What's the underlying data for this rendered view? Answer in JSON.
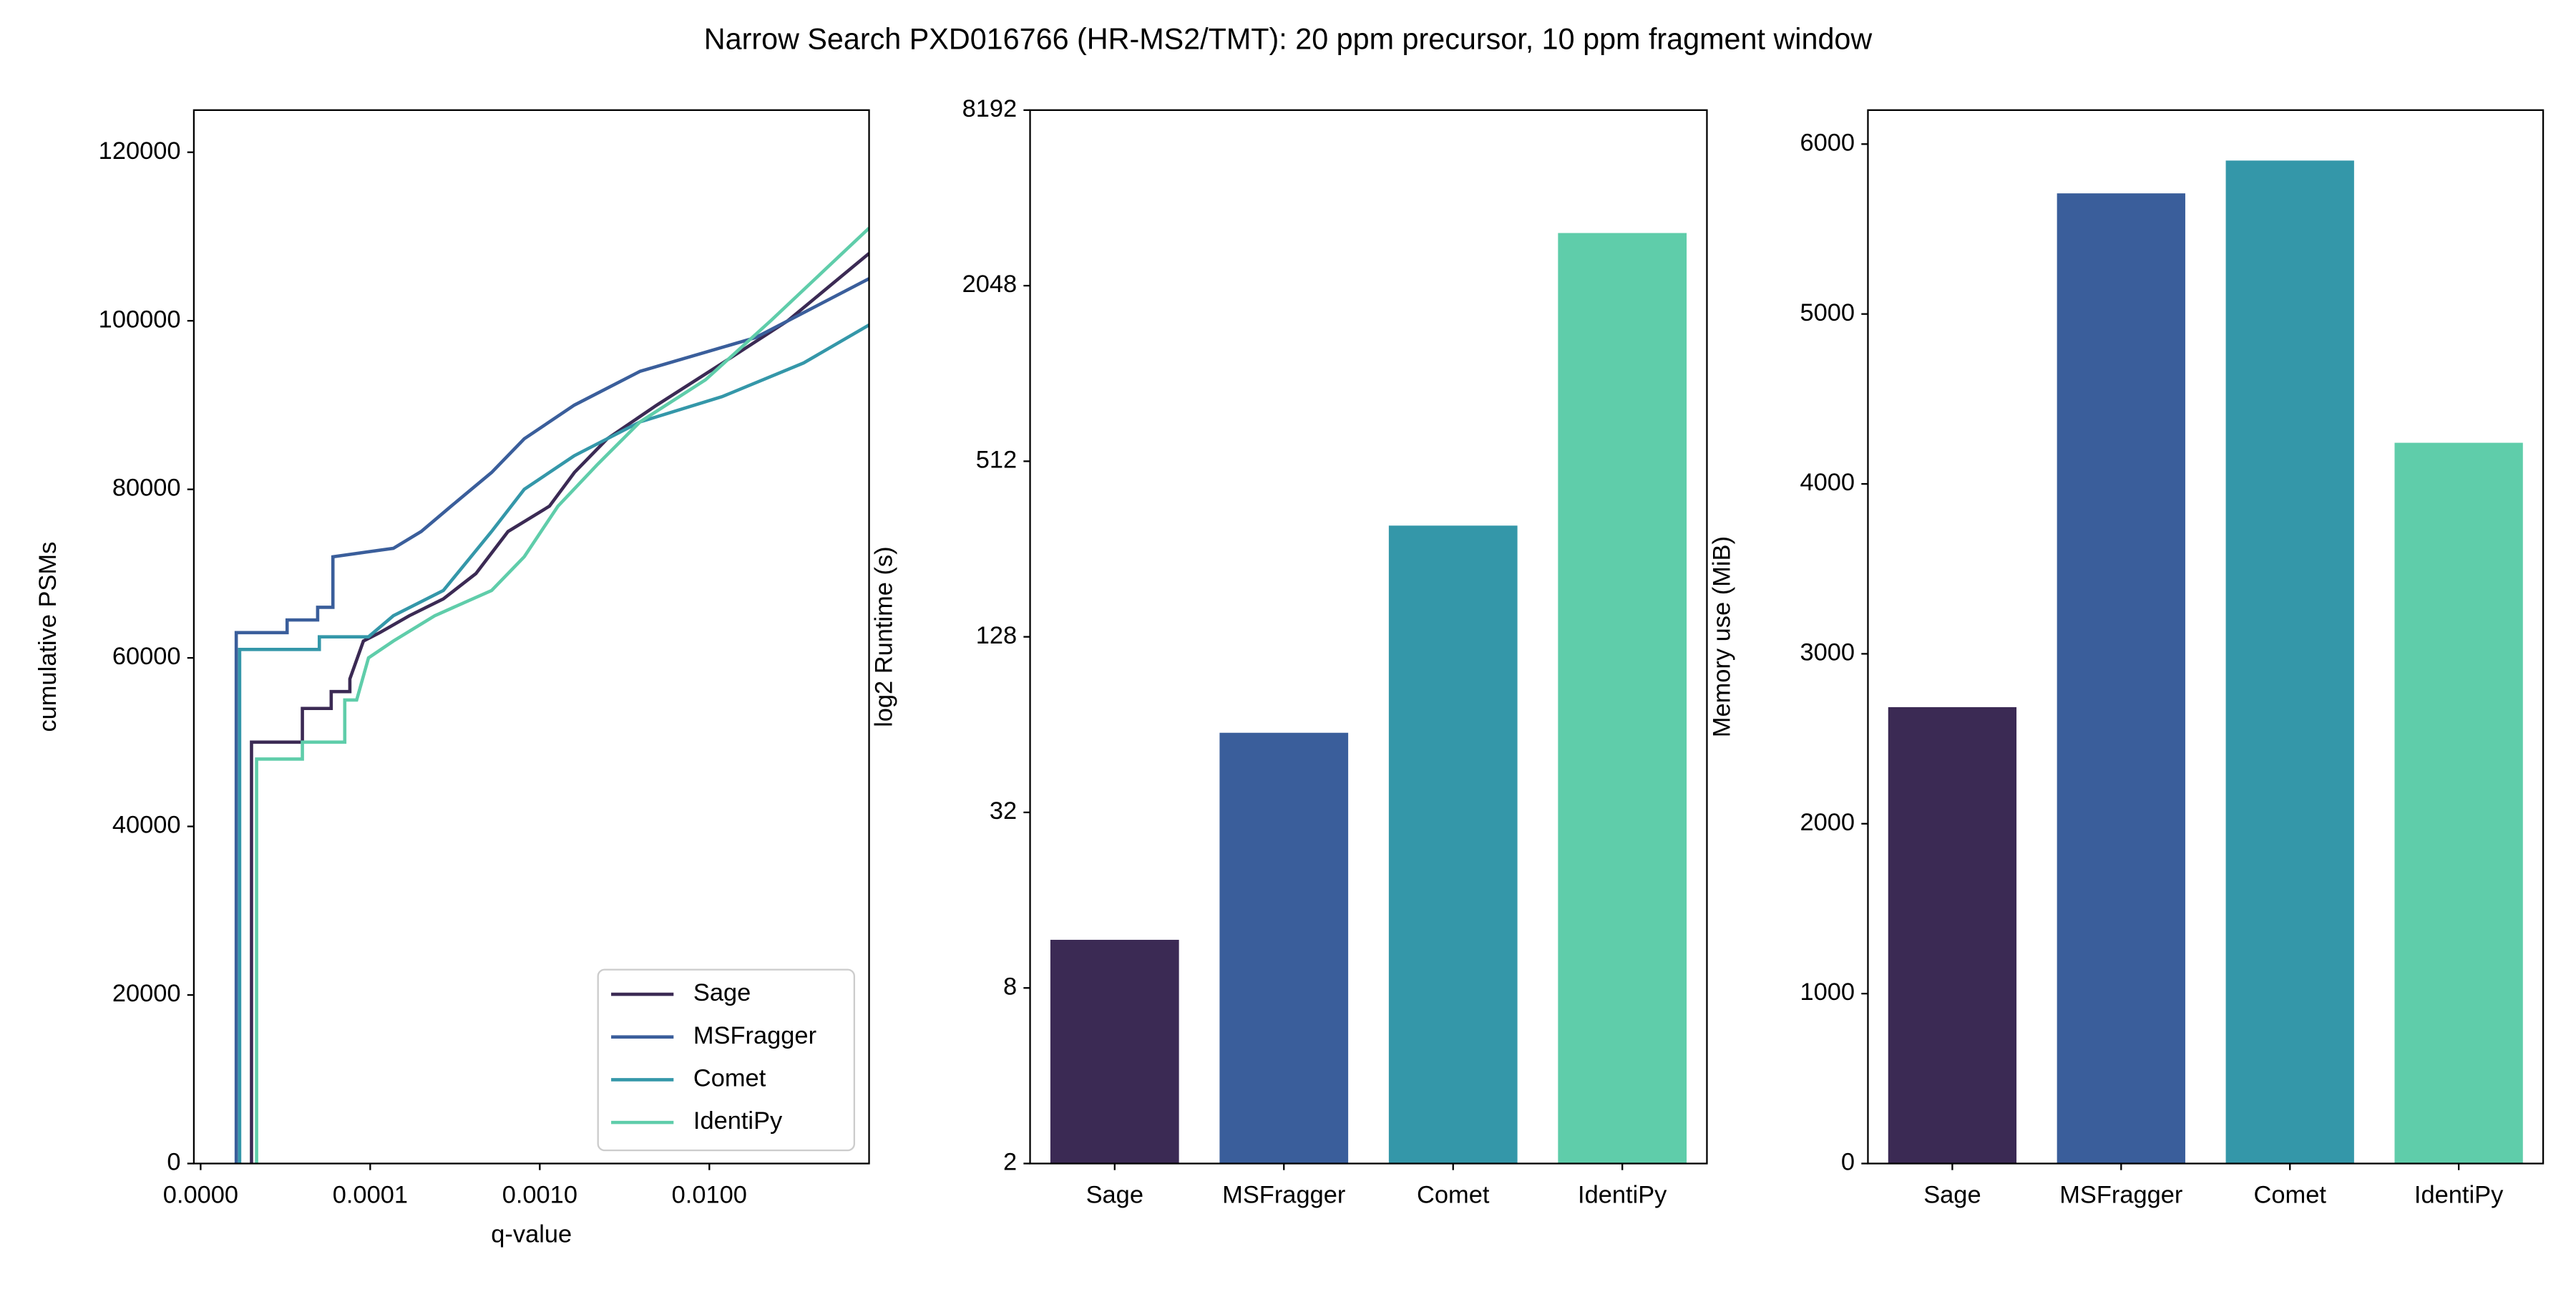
{
  "title": "Narrow Search PXD016766 (HR-MS2/TMT): 20 ppm precursor, 10 ppm fragment window",
  "chart_data": [
    {
      "type": "line",
      "xlabel": "q-value",
      "ylabel": "cumulative PSMs",
      "xscale": "symlog",
      "linthresh": 0.0001,
      "xlim": [
        -4e-06,
        0.0875
      ],
      "ylim": [
        0,
        125000
      ],
      "xticks": [
        {
          "value": 0,
          "label": "0.0000"
        },
        {
          "value": 0.0001,
          "label": "0.0001"
        },
        {
          "value": 0.001,
          "label": "0.0010"
        },
        {
          "value": 0.01,
          "label": "0.0100"
        }
      ],
      "yticks": [
        0,
        20000,
        40000,
        60000,
        80000,
        100000,
        120000
      ],
      "legend": "lower right",
      "series": [
        {
          "name": "Sage",
          "color": "#3b2a54",
          "x": [
            3e-05,
            3e-05,
            6e-05,
            6e-05,
            7.7e-05,
            7.7e-05,
            8.8e-05,
            8.8e-05,
            9.6e-05,
            0.000114,
            0.00017,
            0.00027,
            0.00042,
            0.00065,
            0.00114,
            0.0016,
            0.0025,
            0.0049,
            0.012,
            0.029,
            0.0875
          ],
          "values": [
            0,
            50000,
            50000,
            54000,
            54000,
            56000,
            56000,
            57500,
            62000,
            63000,
            65000,
            67000,
            70000,
            75000,
            78000,
            82000,
            86000,
            90000,
            95000,
            100000,
            108000
          ]
        },
        {
          "name": "MSFragger",
          "color": "#3a5e9b",
          "x": [
            2.1e-05,
            2.1e-05,
            5.1e-05,
            5.1e-05,
            6.9e-05,
            6.9e-05,
            7.8e-05,
            7.8e-05,
            0.000137,
            0.0002,
            0.0003,
            0.00052,
            0.00081,
            0.0016,
            0.0039,
            0.0187,
            0.0875
          ],
          "values": [
            0,
            63000,
            63000,
            64500,
            64500,
            66000,
            66000,
            72000,
            73000,
            75000,
            78000,
            82000,
            86000,
            90000,
            94000,
            98000,
            105000
          ]
        },
        {
          "name": "Comet",
          "color": "#3497a9",
          "x": [
            2.3e-05,
            2.3e-05,
            7e-05,
            7e-05,
            9.9e-05,
            0.000137,
            0.00027,
            0.00052,
            0.00081,
            0.0016,
            0.0039,
            0.0119,
            0.036,
            0.0875
          ],
          "values": [
            0,
            61000,
            61000,
            62500,
            62500,
            65000,
            68000,
            75000,
            80000,
            84000,
            88000,
            91000,
            95000,
            99500
          ]
        },
        {
          "name": "IdentiPy",
          "color": "#5fcdaa",
          "x": [
            3.3e-05,
            3.3e-05,
            6e-05,
            6e-05,
            8.5e-05,
            8.5e-05,
            9.2e-05,
            9.9e-05,
            0.000137,
            0.00024,
            0.00052,
            0.00081,
            0.00128,
            0.0022,
            0.0039,
            0.0095,
            0.023,
            0.0875
          ],
          "values": [
            0,
            48000,
            48000,
            50000,
            50000,
            55000,
            55000,
            60000,
            62000,
            65000,
            68000,
            72000,
            78000,
            83000,
            88000,
            93000,
            100000,
            111000
          ]
        }
      ]
    },
    {
      "type": "bar",
      "ylabel": "log2 Runtime (s)",
      "yscale": "log",
      "log_base": 2,
      "ylim": [
        2,
        8192
      ],
      "yticks": [
        2,
        8,
        32,
        128,
        512,
        2048,
        8192
      ],
      "categories": [
        "Sage",
        "MSFragger",
        "Comet",
        "IdentiPy"
      ],
      "values": [
        11.7,
        60,
        308,
        3104
      ],
      "colors": [
        "#3b2a54",
        "#3a5e9b",
        "#3497a9",
        "#5fcdaa"
      ]
    },
    {
      "type": "bar",
      "ylabel": "Memory use (MiB)",
      "ylim": [
        0,
        6200
      ],
      "yticks": [
        0,
        1000,
        2000,
        3000,
        4000,
        5000,
        6000
      ],
      "categories": [
        "Sage",
        "MSFragger",
        "Comet",
        "IdentiPy"
      ],
      "values": [
        2686,
        5710,
        5903,
        4242
      ],
      "colors": [
        "#3b2a54",
        "#3a5e9b",
        "#3497a9",
        "#5fcdaa"
      ]
    }
  ]
}
